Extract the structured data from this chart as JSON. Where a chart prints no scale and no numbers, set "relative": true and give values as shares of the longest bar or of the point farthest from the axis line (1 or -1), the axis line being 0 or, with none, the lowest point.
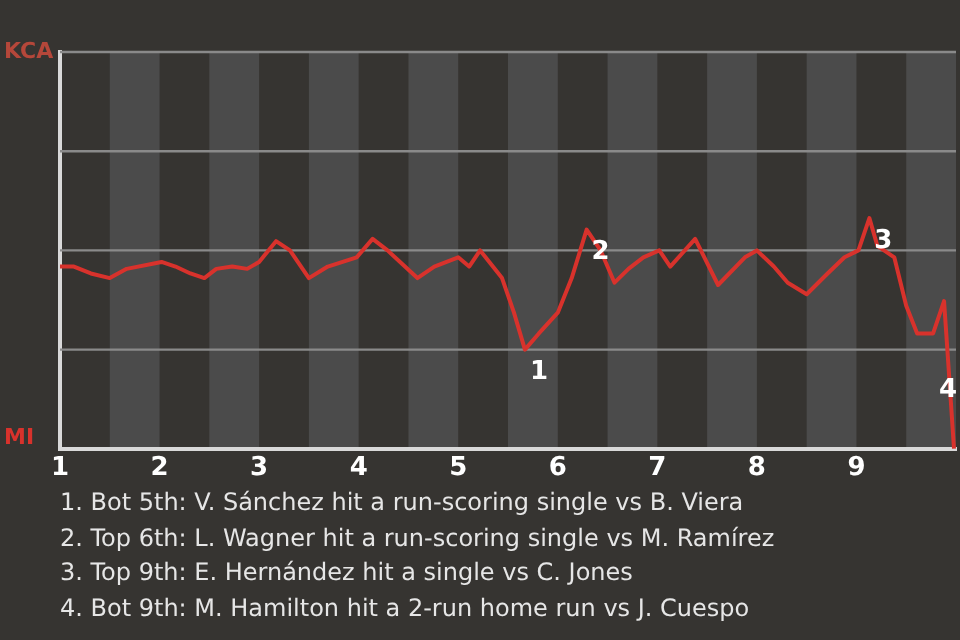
{
  "chart_data": {
    "type": "line",
    "relative": true,
    "x": [
      1,
      1.14,
      1.31,
      1.5,
      1.67,
      2.02,
      2.16,
      2.31,
      2.45,
      2.57,
      2.73,
      2.88,
      3,
      3.17,
      3.31,
      3.5,
      3.69,
      3.98,
      4.14,
      4.29,
      4.59,
      4.76,
      5,
      5.11,
      5.22,
      5.44,
      5.56,
      5.67,
      5.81,
      6,
      6.14,
      6.29,
      6.43,
      6.57,
      6.71,
      6.86,
      7.02,
      7.13,
      7.38,
      7.61,
      7.88,
      8,
      8.17,
      8.31,
      8.5,
      8.71,
      8.88,
      9.02,
      9.13,
      9.21,
      9.38,
      9.5,
      9.61,
      9.77,
      9.88,
      9.91,
      9.98
    ],
    "series": [
      {
        "color": "#d8322c",
        "values": [
          0.79,
          0.79,
          0.76,
          0.74,
          0.78,
          0.81,
          0.79,
          0.76,
          0.74,
          0.78,
          0.79,
          0.78,
          0.81,
          0.9,
          0.86,
          0.74,
          0.79,
          0.83,
          0.91,
          0.86,
          0.74,
          0.79,
          0.83,
          0.79,
          0.86,
          0.74,
          0.59,
          0.43,
          0.5,
          0.59,
          0.74,
          0.95,
          0.86,
          0.72,
          0.78,
          0.83,
          0.86,
          0.79,
          0.91,
          0.71,
          0.83,
          0.86,
          0.79,
          0.72,
          0.67,
          0.76,
          0.83,
          0.86,
          1,
          0.88,
          0.83,
          0.62,
          0.5,
          0.5,
          0.64,
          0.45,
          0
        ]
      }
    ],
    "xlim": [
      1,
      10
    ],
    "xticks": [
      1,
      2,
      3,
      4,
      5,
      6,
      7,
      8,
      9
    ],
    "marker": "none",
    "line_style": "solid",
    "ref_lines": [
      {
        "axis": "y",
        "value": 0.43,
        "color": "#8a8a8a"
      },
      {
        "axis": "y",
        "value": 0.86,
        "color": "#8a8a8a"
      },
      {
        "axis": "y",
        "value": 1.29,
        "color": "#8a8a8a"
      },
      {
        "axis": "y",
        "value": 1.72,
        "color": "#8a8a8a"
      }
    ],
    "bands": [
      {
        "axis": "x",
        "from": 1.5,
        "to": 2,
        "color": "#4b4b4b"
      },
      {
        "axis": "x",
        "from": 2.5,
        "to": 3,
        "color": "#4b4b4b"
      },
      {
        "axis": "x",
        "from": 3.5,
        "to": 4,
        "color": "#4b4b4b"
      },
      {
        "axis": "x",
        "from": 4.5,
        "to": 5,
        "color": "#4b4b4b"
      },
      {
        "axis": "x",
        "from": 5.5,
        "to": 6,
        "color": "#4b4b4b"
      },
      {
        "axis": "x",
        "from": 6.5,
        "to": 7,
        "color": "#4b4b4b"
      },
      {
        "axis": "x",
        "from": 7.5,
        "to": 8,
        "color": "#4b4b4b"
      },
      {
        "axis": "x",
        "from": 8.5,
        "to": 9,
        "color": "#4b4b4b"
      },
      {
        "axis": "x",
        "from": 9.5,
        "to": 10,
        "color": "#4b4b4b"
      }
    ],
    "annotations": [
      "KCA",
      "MI",
      {
        "text": "1",
        "x": 5.67,
        "y": 0.43
      },
      {
        "text": "2",
        "x": 6.29,
        "y": 0.95
      },
      {
        "text": "3",
        "x": 9.13,
        "y": 1
      },
      {
        "text": "4",
        "x": 9.98,
        "y": 0
      },
      "1. Bot 5th: V. Sánchez hit a run-scoring single vs B. Viera",
      "2. Top 6th: L. Wagner hit a run-scoring single vs M. Ramírez",
      "3. Top 9th: E. Hernández hit a single vs C. Jones",
      "4. Bot 9th: M. Hamilton hit a 2-run home run vs J. Cuespo"
    ]
  }
}
